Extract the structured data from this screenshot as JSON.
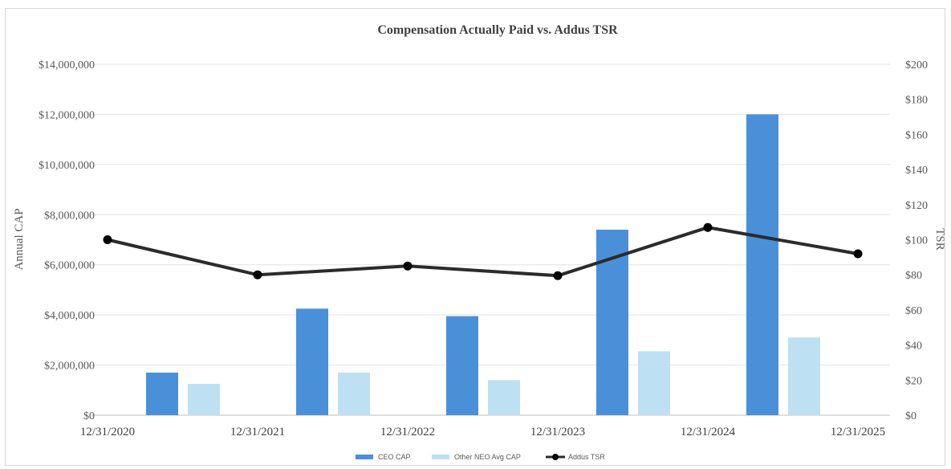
{
  "chart_data": {
    "type": "bar",
    "title": "Compensation Actually Paid vs. Addus TSR",
    "y_left_label": "Annual CAP",
    "y_right_label": "TSR",
    "categories": [
      "12/31/2020",
      "12/31/2021",
      "12/31/2022",
      "12/31/2023",
      "12/31/2024",
      "12/31/2025"
    ],
    "x_tick_labels": [
      "12/31/2020",
      "12/31/2021",
      "12/31/2022",
      "12/31/2023",
      "12/31/2024",
      "12/31/2025"
    ],
    "y_left_ticks": [
      "$0",
      "$2,000,000",
      "$4,000,000",
      "$6,000,000",
      "$8,000,000",
      "$10,000,000",
      "$12,000,000",
      "$14,000,000"
    ],
    "y_right_ticks": [
      "$0",
      "$20",
      "$40",
      "$60",
      "$80",
      "$100",
      "$120",
      "$140",
      "$160",
      "$180",
      "$200"
    ],
    "y_left_lim": [
      0,
      14000000
    ],
    "y_right_lim": [
      0,
      200
    ],
    "grid": true,
    "legend_position": "bottom",
    "bar_series": [
      {
        "name": "CEO CAP",
        "color": "#4a90d9",
        "values": [
          1700000,
          4250000,
          3950000,
          7400000,
          12000000
        ]
      },
      {
        "name": "Other NEO Avg CAP",
        "color": "#bde0f3",
        "values": [
          1250000,
          1700000,
          1400000,
          2550000,
          3100000
        ]
      }
    ],
    "line_series": {
      "name": "Addus TSR",
      "color": "#2b2b2b",
      "values": [
        100,
        80,
        85,
        79.5,
        107,
        92
      ]
    }
  }
}
